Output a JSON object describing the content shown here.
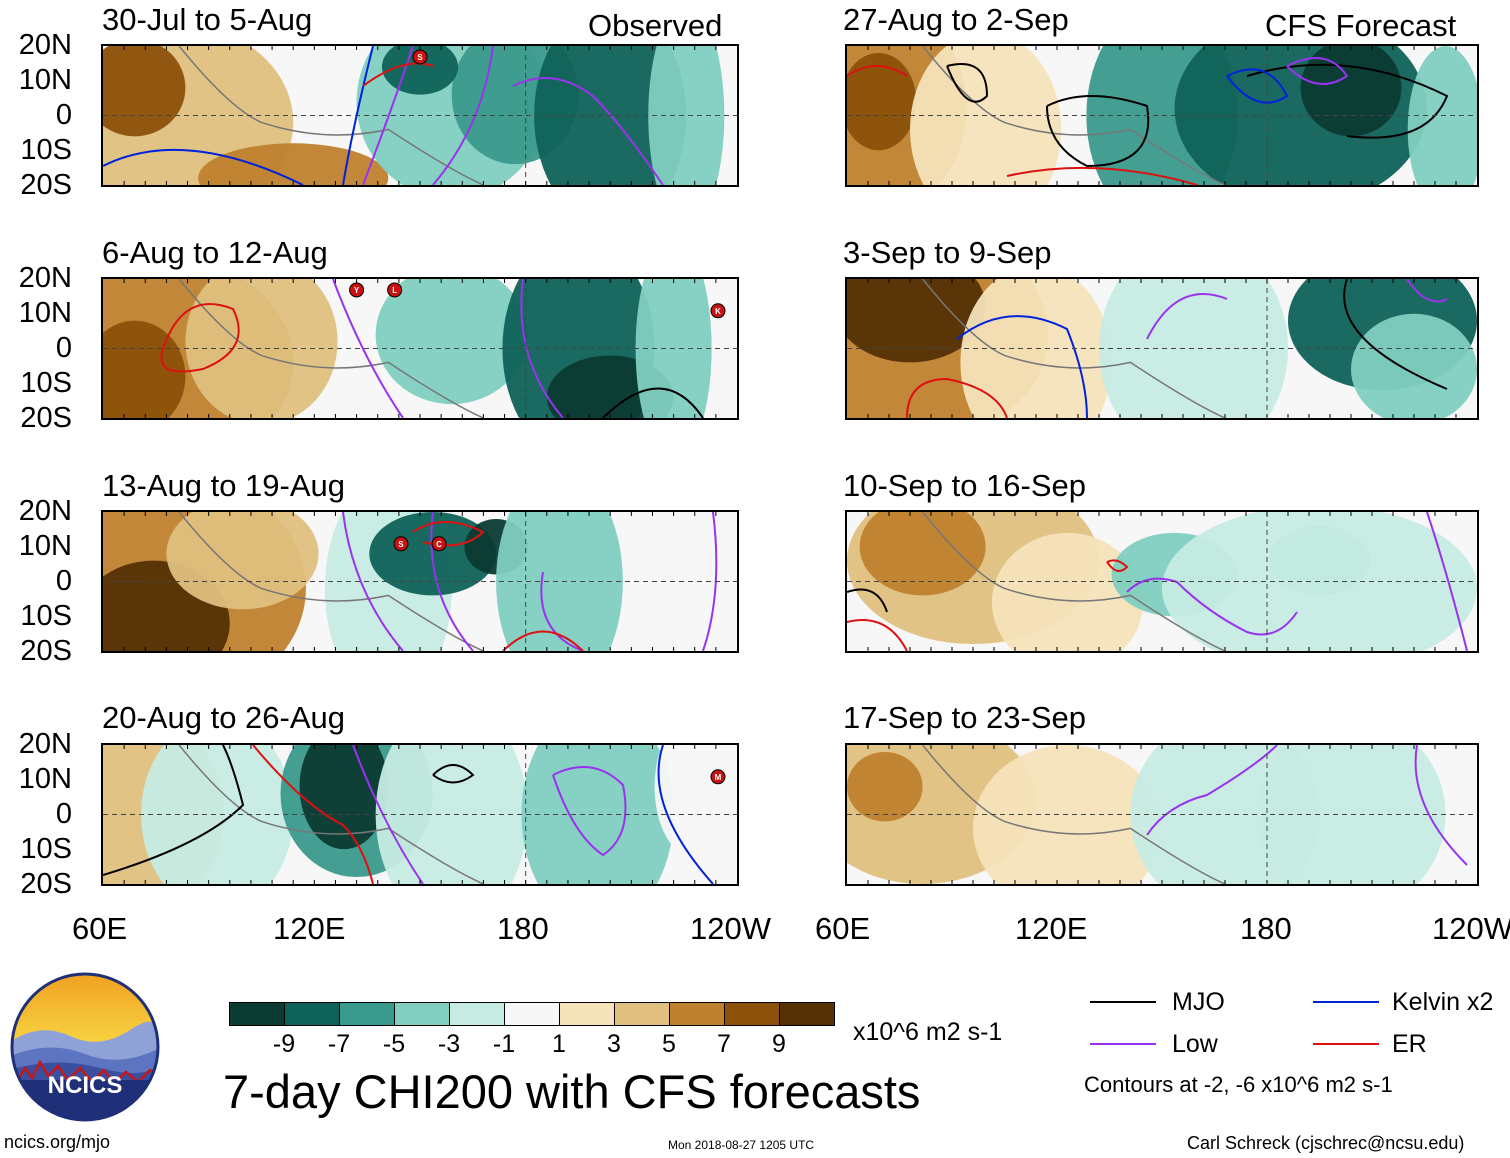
{
  "figure_title": "7-day CHI200 with CFS forecasts",
  "header": {
    "observed_label": "Observed",
    "forecast_label": "CFS Forecast"
  },
  "observed_panels": [
    {
      "title": "30-Jul to 5-Aug",
      "storms": [
        "S"
      ]
    },
    {
      "title": "6-Aug to 12-Aug",
      "storms": [
        "Y",
        "L",
        "K"
      ]
    },
    {
      "title": "13-Aug to 19-Aug",
      "storms": [
        "S",
        "C"
      ]
    },
    {
      "title": "20-Aug to 26-Aug",
      "storms": [
        "M"
      ]
    }
  ],
  "forecast_panels": [
    {
      "title": "27-Aug to 2-Sep"
    },
    {
      "title": "3-Sep to 9-Sep"
    },
    {
      "title": "10-Sep to 16-Sep"
    },
    {
      "title": "17-Sep to 23-Sep"
    }
  ],
  "lat_labels": [
    "20N",
    "10N",
    "0",
    "10S",
    "20S"
  ],
  "lon_labels": [
    "60E",
    "120E",
    "180",
    "120W"
  ],
  "colorbar": {
    "colors": [
      "#0c3b33",
      "#0f6258",
      "#3a9a8c",
      "#80cfc0",
      "#c6ebe3",
      "#f7f7f7",
      "#f5e3bb",
      "#dfc07e",
      "#bf812d",
      "#8c510a",
      "#543005"
    ],
    "ticks": [
      "-9",
      "-7",
      "-5",
      "-3",
      "-1",
      "1",
      "3",
      "5",
      "7",
      "9"
    ],
    "units": "x10^6 m2 s-1"
  },
  "legend": {
    "items": [
      {
        "label": "MJO",
        "color": "#000000"
      },
      {
        "label": "Kelvin x2",
        "color": "#0022dd"
      },
      {
        "label": "Low",
        "color": "#9933ee"
      },
      {
        "label": "ER",
        "color": "#dd1111"
      }
    ],
    "contour_note": "Contours at -2, -6 x10^6 m2 s-1"
  },
  "logo": {
    "text": "NCICS"
  },
  "footer": {
    "url": "ncics.org/mjo",
    "timestamp": "Mon 2018-08-27 1205 UTC",
    "author": "Carl Schreck (cjschrec@ncsu.edu)"
  }
}
